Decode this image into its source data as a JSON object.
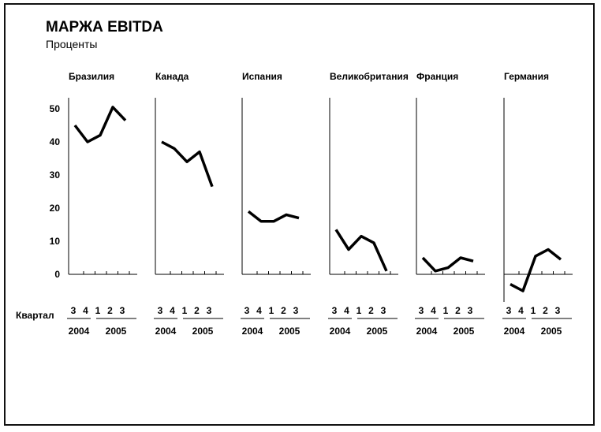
{
  "title": "МАРЖА EBITDA",
  "subtitle": "Проценты",
  "quarter_label": "Квартал",
  "colors": {
    "line": "#000000",
    "axis": "#000000",
    "background": "#ffffff"
  },
  "chart_data": {
    "type": "line",
    "title": "МАРЖА EBITDA",
    "subtitle": "Проценты",
    "ylim": [
      0,
      50
    ],
    "yticks": [
      0,
      10,
      20,
      30,
      40,
      50
    ],
    "quarters": [
      "3",
      "4",
      "1",
      "2",
      "3"
    ],
    "years": [
      "2004",
      "2005"
    ],
    "xlabel": "Квартал",
    "series": [
      {
        "name": "Бразилия",
        "values": [
          45,
          40,
          42,
          50.5,
          46.5
        ]
      },
      {
        "name": "Канада",
        "values": [
          40,
          38,
          34,
          37,
          26.5
        ]
      },
      {
        "name": "Испания",
        "values": [
          19,
          16,
          16,
          18,
          17
        ]
      },
      {
        "name": "Великобритания",
        "values": [
          13.5,
          7.5,
          11.5,
          9.5,
          1
        ]
      },
      {
        "name": "Франция",
        "values": [
          5,
          1,
          2,
          5,
          4
        ]
      },
      {
        "name": "Германия",
        "values": [
          -3,
          -5,
          5.5,
          7.5,
          4.5
        ]
      }
    ]
  }
}
